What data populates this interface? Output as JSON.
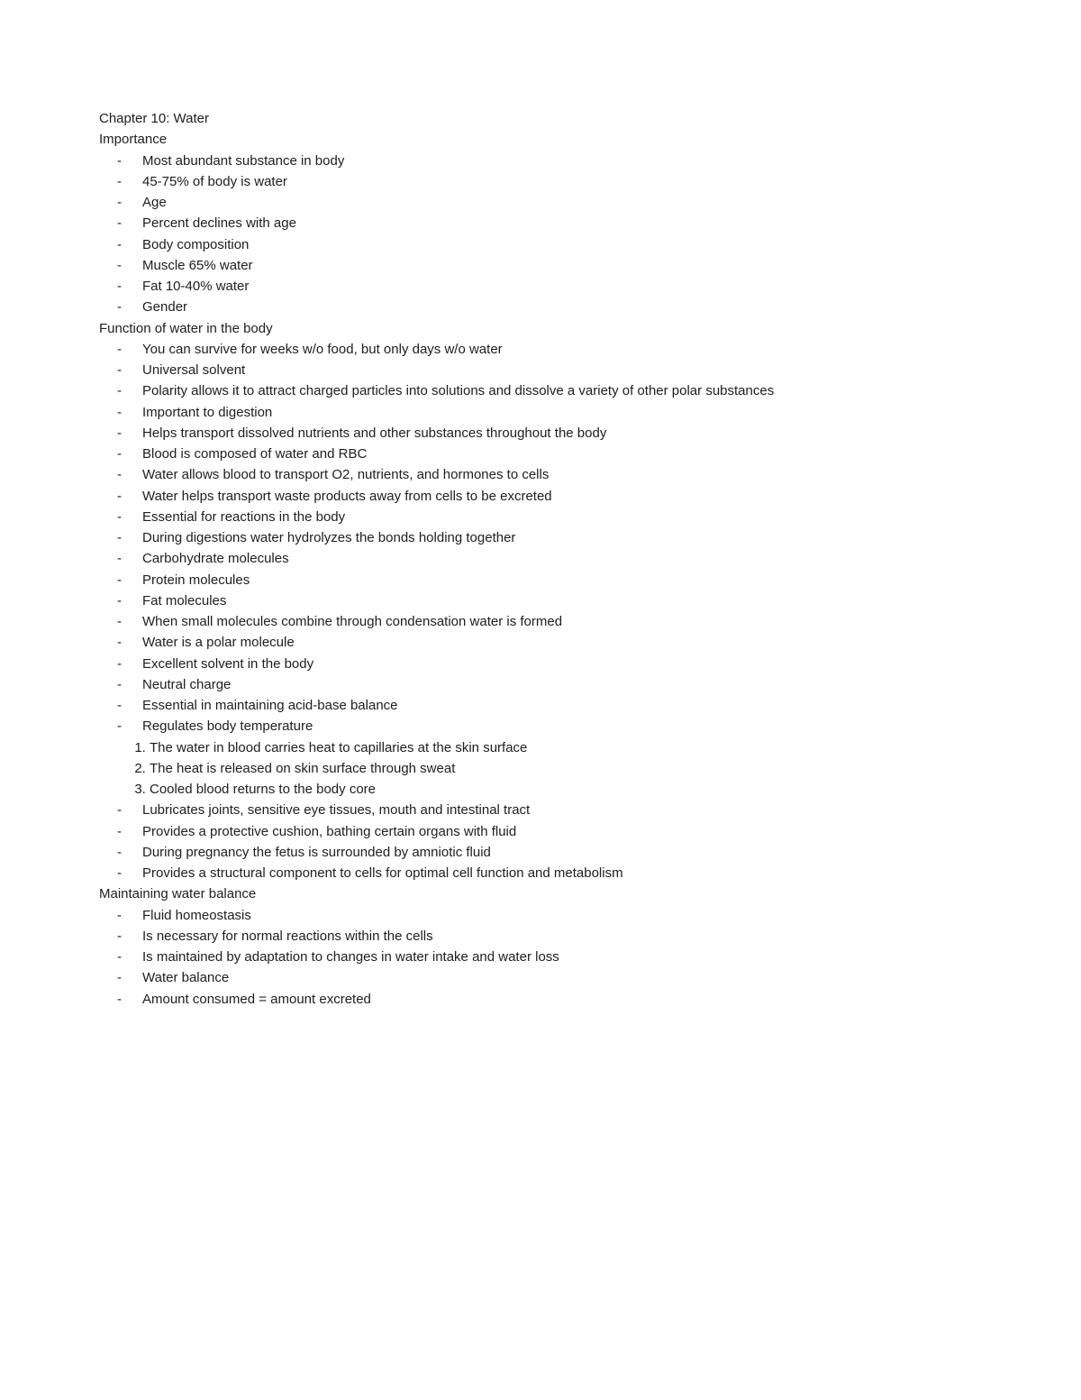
{
  "title": "Chapter 10: Water",
  "sections": {
    "importance": {
      "heading": "Importance",
      "l1_0": "Most abundant substance in body",
      "l1_1": "45-75% of body is water",
      "l2_age": "Age",
      "l3_age_0": "Percent declines with age",
      "l2_bodycomp": "Body composition",
      "l3_bc_0": "Muscle 65% water",
      "l3_bc_1": "Fat 10-40% water",
      "l2_gender": "Gender"
    },
    "function": {
      "heading": "Function of water in the body",
      "l1_0": "You can survive for weeks w/o food, but only days w/o water",
      "l1_1": "Universal solvent",
      "l1_2": "Polarity allows it to attract charged particles into solutions and dissolve a variety of other polar substances",
      "l2_2_0": "Important to digestion",
      "l1_3": "Helps transport dissolved nutrients and other substances throughout the body",
      "l1_4": "Blood is composed of water and RBC",
      "l2_4_0": "Water allows blood to transport O2, nutrients, and hormones to cells",
      "l2_4_1": "Water helps transport waste products away from cells to be excreted",
      "l1_5": "Essential for reactions in the body",
      "l2_5_0": "During digestions water hydrolyzes the bonds holding together",
      "l3_5_0_0": "Carbohydrate molecules",
      "l3_5_0_1": "Protein molecules",
      "l3_5_0_2": "Fat molecules",
      "l2_5_1": "When small molecules combine through condensation water is formed",
      "l1_6": "Water is a polar molecule",
      "l2_6_0": "Excellent solvent in the body",
      "l2_6_1": "Neutral charge",
      "l2_6_2": "Essential in maintaining acid-base balance",
      "l1_7": "Regulates body temperature",
      "n_7_1": "The water in blood carries heat to capillaries at the skin surface",
      "n_7_2": "The heat is released on skin surface through sweat",
      "n_7_3": "Cooled blood returns to the body core",
      "l1_8": "Lubricates joints, sensitive eye tissues, mouth and intestinal tract",
      "l1_9": "Provides a protective cushion, bathing certain organs with fluid",
      "l2_9_0": "During pregnancy the fetus is surrounded by amniotic fluid",
      "l1_10": "Provides a structural component to cells for optimal cell function and metabolism"
    },
    "maintain": {
      "heading": "Maintaining water balance",
      "l1_0": "Fluid homeostasis",
      "l2_0_0": "Is necessary for normal reactions within the cells",
      "l2_0_1": "Is maintained by adaptation to changes in water intake and water loss",
      "l2_0_2": "Water balance",
      "l2_0_3": "Amount consumed = amount excreted"
    }
  }
}
